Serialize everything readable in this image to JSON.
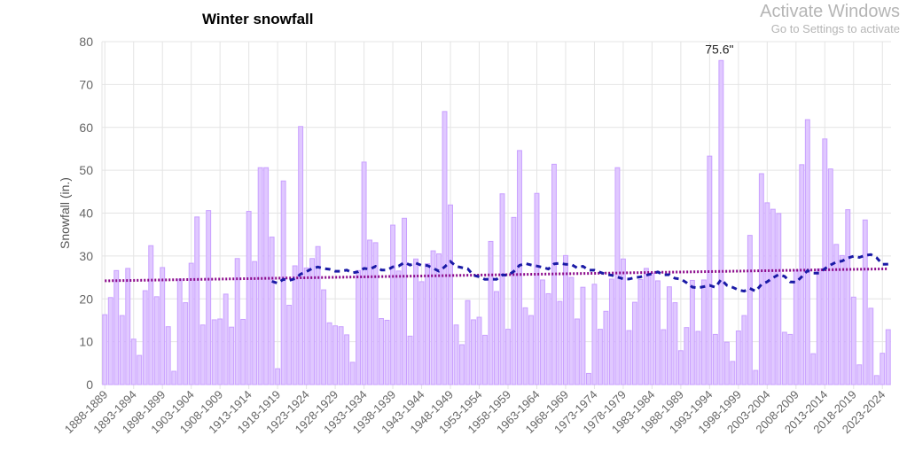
{
  "chart_data": {
    "type": "bar",
    "title": "Winter snowfall",
    "ylabel": "Snowfall (in.)",
    "xlabel": "",
    "ylim": [
      0,
      80
    ],
    "yticks": [
      0,
      10,
      20,
      30,
      40,
      50,
      60,
      70,
      80
    ],
    "grid": true,
    "first_season_start": 1888,
    "tick_every": 5,
    "bar_color": "#e0c8ff",
    "bar_border": "#c9a0ff",
    "moving_average_color": "#1a1aa6",
    "trend_color": "#8b0a8b",
    "moving_average_window": 30,
    "trend": {
      "start": 24.2,
      "end": 27.0
    },
    "annotation": {
      "season": "1995-1996",
      "text": "75.6\""
    },
    "values": [
      16.3,
      20.3,
      26.6,
      16.1,
      27.1,
      10.6,
      6.8,
      21.9,
      32.4,
      20.5,
      27.3,
      13.5,
      3.1,
      24.6,
      19.1,
      28.3,
      39.1,
      13.9,
      40.6,
      15.1,
      15.3,
      21.1,
      13.4,
      29.4,
      15.2,
      40.4,
      28.7,
      50.6,
      50.6,
      34.4,
      3.7,
      47.5,
      18.5,
      27.7,
      60.2,
      27.2,
      29.4,
      32.2,
      22.1,
      14.4,
      13.7,
      13.5,
      11.6,
      5.2,
      26.6,
      51.9,
      33.7,
      33.1,
      15.4,
      15.0,
      37.2,
      26.5,
      38.8,
      11.3,
      29.3,
      24.0,
      28.2,
      31.2,
      30.5,
      63.7,
      41.9,
      13.9,
      9.3,
      19.6,
      15.1,
      15.7,
      11.5,
      33.4,
      21.7,
      44.5,
      12.9,
      39.0,
      54.6,
      17.9,
      16.1,
      44.6,
      24.4,
      21.2,
      51.4,
      19.4,
      30.1,
      25.0,
      15.3,
      22.7,
      2.6,
      23.4,
      12.9,
      17.1,
      24.6,
      50.6,
      29.3,
      12.6,
      19.2,
      24.5,
      27.1,
      26.0,
      24.2,
      12.8,
      22.8,
      19.1,
      7.9,
      13.3,
      24.3,
      12.4,
      24.4,
      53.3,
      11.7,
      75.6,
      9.9,
      5.4,
      12.5,
      16.1,
      34.8,
      3.3,
      49.2,
      42.4,
      40.9,
      39.9,
      12.2,
      11.7,
      26.7,
      51.3,
      61.8,
      7.2,
      27.0,
      57.3,
      50.3,
      32.7,
      30.1,
      40.8,
      20.4,
      4.6,
      38.4,
      17.8,
      2.1,
      7.3,
      12.8
    ]
  },
  "watermark": {
    "line1": "Activate Windows",
    "line2": "Go to Settings to activate"
  }
}
